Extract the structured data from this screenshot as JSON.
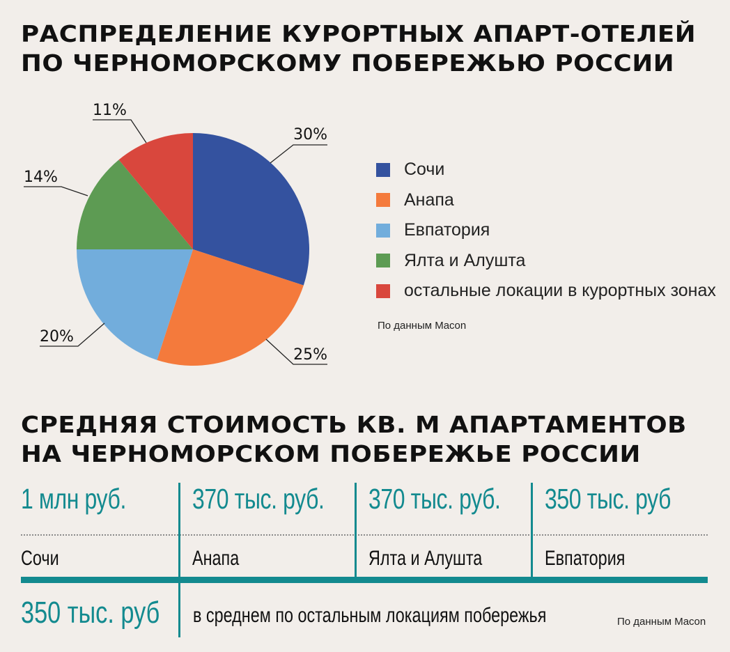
{
  "section1": {
    "title_line1": "РАСПРЕДЕЛЕНИЕ КУРОРТНЫХ АПАРТ-ОТЕЛЕЙ",
    "title_line2": "ПО ЧЕРНОМОРСКОМУ ПОБЕРЕЖЬЮ РОССИИ",
    "source": "По данным Macon"
  },
  "chart_data": {
    "type": "pie",
    "title": "РАСПРЕДЕЛЕНИЕ КУРОРТНЫХ АПАРТ-ОТЕЛЕЙ ПО ЧЕРНОМОРСКОМУ ПОБЕРЕЖЬЮ РОССИИ",
    "legend_position": "right",
    "slices": [
      {
        "name": "Сочи",
        "value": 30,
        "label": "30%",
        "color": "#34529f"
      },
      {
        "name": "Анапа",
        "value": 25,
        "label": "25%",
        "color": "#f47a3c"
      },
      {
        "name": "Евпатория",
        "value": 20,
        "label": "20%",
        "color": "#72addc"
      },
      {
        "name": "Ялта и Алушта",
        "value": 14,
        "label": "14%",
        "color": "#5d9b53"
      },
      {
        "name": "остальные локации в курортных зонах",
        "value": 11,
        "label": "11%",
        "color": "#d9473d"
      }
    ]
  },
  "section2": {
    "title_line1": "СРЕДНЯЯ СТОИМОСТЬ КВ. М АПАРТАМЕНТОВ",
    "title_line2": "НА ЧЕРНОМОРСКОМ ПОБЕРЕЖЬЕ РОССИИ",
    "prices": [
      {
        "value": "1 млн руб.",
        "city": "Сочи"
      },
      {
        "value": "370 тыс. руб.",
        "city": "Анапа"
      },
      {
        "value": "370 тыс. руб.",
        "city": "Ялта и Алушта"
      },
      {
        "value": "350 тыс. руб",
        "city": "Евпатория"
      }
    ],
    "other_value": "350 тыс. руб",
    "other_label": "в среднем по остальным локациям побережья",
    "source": "По данным Macon",
    "accent_color": "#138a8f"
  }
}
